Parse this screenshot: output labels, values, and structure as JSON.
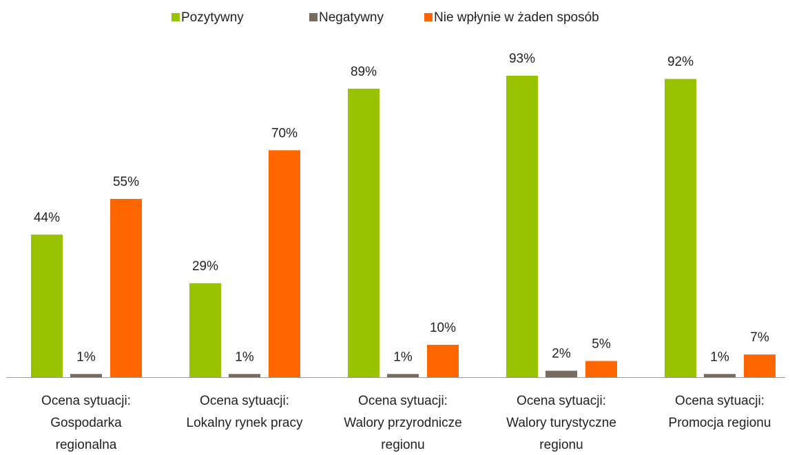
{
  "chart_data": {
    "type": "bar",
    "categories": [
      [
        "Ocena sytuacji:",
        "Gospodarka",
        "regionalna"
      ],
      [
        "Ocena sytuacji:",
        "Lokalny rynek pracy"
      ],
      [
        "Ocena sytuacji:",
        "Walory przyrodnicze",
        "regionu"
      ],
      [
        "Ocena sytuacji:",
        "Walory turystyczne",
        "regionu"
      ],
      [
        "Ocena sytuacji:",
        "Promocja regionu"
      ]
    ],
    "series": [
      {
        "name": "Pozytywny",
        "color": "#99c300",
        "values": [
          44,
          29,
          89,
          93,
          92
        ],
        "value_labels": [
          "44%",
          "29%",
          "89%",
          "93%",
          "92%"
        ]
      },
      {
        "name": "Negatywny",
        "color": "#756c5f",
        "values": [
          1,
          1,
          1,
          2,
          1
        ],
        "value_labels": [
          "1%",
          "1%",
          "1%",
          "2%",
          "1%"
        ]
      },
      {
        "name": "Nie wpłynie w żaden sposób",
        "color": "#ff6600",
        "values": [
          55,
          70,
          10,
          5,
          7
        ],
        "value_labels": [
          "55%",
          "70%",
          "10%",
          "5%",
          "7%"
        ]
      }
    ],
    "legend": "top"
  }
}
